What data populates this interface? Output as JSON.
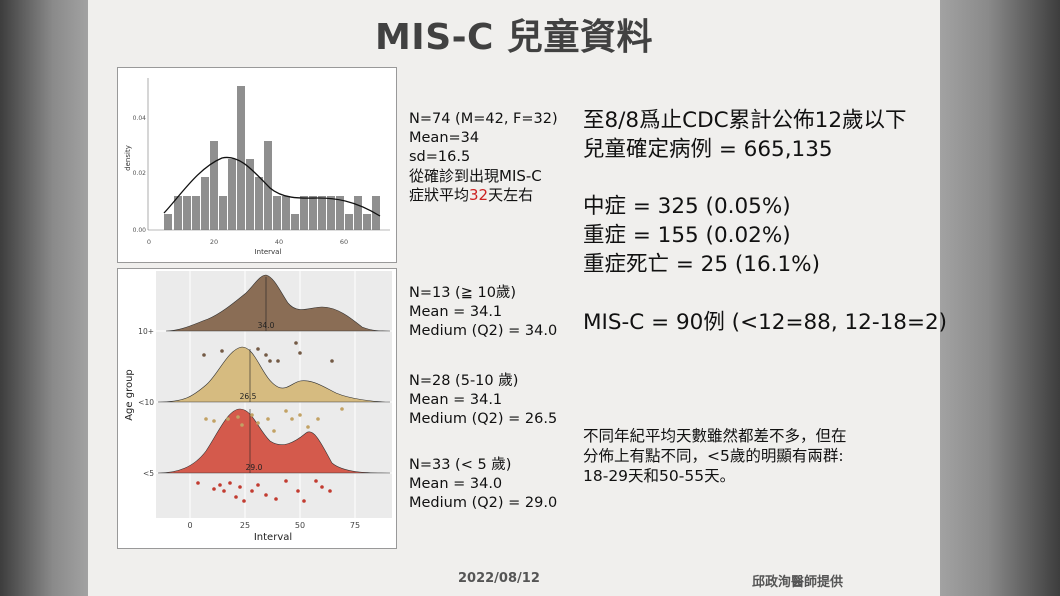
{
  "slide": {
    "title": "MIS-C 兒童資料",
    "date": "2022/08/12",
    "credit": "邱政洵醫師提供"
  },
  "histogram": {
    "ylabel": "density",
    "xlabel": "Interval",
    "yticks": [
      "0.04",
      "0.02",
      "0.00"
    ],
    "xticks": [
      "0",
      "20",
      "40",
      "60"
    ],
    "stats_lines": [
      "N=74 (M=42, F=32)",
      "Mean=34",
      "sd=16.5",
      "從確診到出現MIS-C"
    ],
    "stats_line5_pre": "症狀平均",
    "stats_line5_num": "32",
    "stats_line5_post": "天左右"
  },
  "ridge": {
    "ylabel": "Age group",
    "xlabel": "Interval",
    "xticks": [
      "0",
      "25",
      "50",
      "75"
    ],
    "groups": [
      {
        "label": "10+",
        "median_label": "34.0",
        "color": "#8a6d55",
        "point_color": "#735a45",
        "stats": [
          "N=13 (≧ 10歲)",
          "Mean = 34.1",
          "Medium (Q2) = 34.0"
        ]
      },
      {
        "label": "<10",
        "median_label": "26.5",
        "color": "#d6bb80",
        "point_color": "#c2a264",
        "stats": [
          "N=28 (5-10 歲)",
          "Mean = 34.1",
          "Medium (Q2) = 26.5"
        ]
      },
      {
        "label": "<5",
        "median_label": "29.0",
        "color": "#d45a4c",
        "point_color": "#c23b30",
        "stats": [
          "N=33 (< 5 歲)",
          "Mean = 34.0",
          "Medium (Q2) = 29.0"
        ]
      }
    ]
  },
  "right": {
    "line1": "至8/8爲止CDC累計公佈12歲以下",
    "line2": "兒童確定病例 = 665,135",
    "line3": "中症 = 325 (0.05%)",
    "line4": "重症 = 155 (0.02%)",
    "line5": "重症死亡 = 25 (16.1%)",
    "line6": "MIS-C = 90例 (<12=88, 12-18=2)",
    "note": [
      "不同年紀平均天數雖然都差不多，但在",
      "分佈上有點不同，<5歲的明顯有兩群:",
      "18-29天和50-55天。"
    ]
  }
}
